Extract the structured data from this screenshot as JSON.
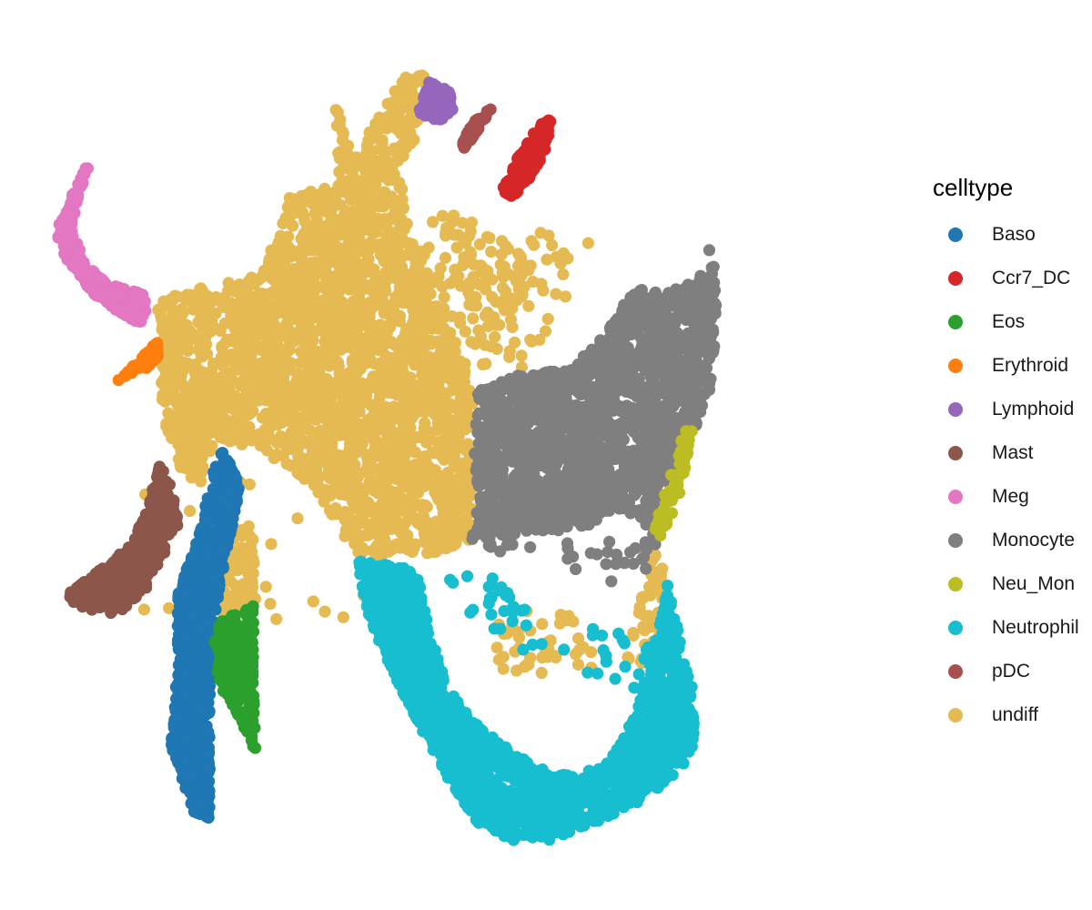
{
  "chart_data": {
    "type": "scatter",
    "title": "",
    "xlabel": "",
    "ylabel": "",
    "axes_visible": false,
    "grid": false,
    "legend_title": "celltype",
    "legend_position": "right",
    "xlim": [
      0,
      100
    ],
    "ylim": [
      0,
      100
    ],
    "series": [
      {
        "name": "Baso",
        "color": "#1F77B4",
        "regions": [
          {
            "shape": "poly",
            "pts": [
              [
                22.3,
                51.6
              ],
              [
                24.9,
                46.6
              ],
              [
                23.2,
                37.9
              ],
              [
                21.6,
                28.9
              ],
              [
                21.4,
                22.9
              ],
              [
                21.3,
                7.2
              ],
              [
                19.7,
                7.7
              ],
              [
                16.8,
                15.7
              ],
              [
                17.5,
                24.4
              ],
              [
                17.6,
                34.0
              ],
              [
                19.7,
                39.4
              ],
              [
                21.4,
                46.4
              ]
            ],
            "n": 1100
          }
        ]
      },
      {
        "name": "Ccr7_DC",
        "color": "#D62728",
        "regions": [
          {
            "shape": "poly",
            "pts": [
              [
                59.8,
                88.5
              ],
              [
                61.2,
                89.5
              ],
              [
                60.8,
                86.0
              ],
              [
                59.0,
                82.8
              ],
              [
                56.9,
                80.2
              ],
              [
                55.3,
                80.5
              ],
              [
                57.2,
                84.5
              ]
            ],
            "n": 160
          }
        ]
      },
      {
        "name": "Eos",
        "color": "#2CA02C",
        "regions": [
          {
            "shape": "poly",
            "pts": [
              [
                22.7,
                30.8
              ],
              [
                26.5,
                32.5
              ],
              [
                26.5,
                22.3
              ],
              [
                26.7,
                15.3
              ],
              [
                24.2,
                20.5
              ],
              [
                22.2,
                23.5
              ],
              [
                21.8,
                28.0
              ]
            ],
            "n": 260
          }
        ]
      },
      {
        "name": "Erythroid",
        "color": "#FF7F0E",
        "regions": [
          {
            "shape": "poly",
            "pts": [
              [
                10.4,
                58.5
              ],
              [
                15.2,
                63.2
              ],
              [
                15.3,
                61.5
              ],
              [
                14.0,
                60.2
              ],
              [
                12.0,
                59.5
              ]
            ],
            "n": 110
          }
        ]
      },
      {
        "name": "Lymphoid",
        "color": "#9467BD",
        "regions": [
          {
            "shape": "poly",
            "pts": [
              [
                45.7,
                90.0
              ],
              [
                47.0,
                93.8
              ],
              [
                49.3,
                92.6
              ],
              [
                49.9,
                90.5
              ],
              [
                48.2,
                89.0
              ]
            ],
            "n": 120
          }
        ]
      },
      {
        "name": "Mast",
        "color": "#8C564B",
        "regions": [
          {
            "shape": "poly",
            "pts": [
              [
                4.3,
                33.2
              ],
              [
                6.2,
                32.3
              ],
              [
                8.5,
                31.6
              ],
              [
                10.6,
                31.5
              ],
              [
                14.0,
                34.5
              ],
              [
                16.5,
                39.2
              ],
              [
                17.9,
                41.8
              ],
              [
                17.0,
                46.2
              ],
              [
                15.5,
                48.8
              ],
              [
                13.9,
                43.5
              ],
              [
                12.2,
                39.5
              ],
              [
                8.2,
                36.4
              ],
              [
                5.0,
                34.3
              ]
            ],
            "n": 380
          }
        ]
      },
      {
        "name": "Meg",
        "color": "#E377C2",
        "regions": [
          {
            "shape": "poly",
            "pts": [
              [
                3.4,
                76.3
              ],
              [
                4.8,
                79.4
              ],
              [
                6.2,
                82.5
              ],
              [
                7.4,
                85.0
              ],
              [
                7.1,
                83.4
              ],
              [
                6.0,
                80.4
              ],
              [
                5.2,
                76.5
              ],
              [
                6.8,
                72.3
              ],
              [
                9.4,
                70.0
              ],
              [
                13.6,
                68.8
              ],
              [
                14.3,
                66.6
              ],
              [
                13.1,
                65.3
              ],
              [
                10.2,
                67.0
              ],
              [
                7.2,
                69.3
              ],
              [
                4.8,
                72.5
              ],
              [
                3.9,
                74.2
              ]
            ],
            "n": 300
          }
        ]
      },
      {
        "name": "Monocyte",
        "color": "#7F7F7F",
        "regions": [
          {
            "shape": "poly",
            "pts": [
              [
                52.6,
                57.4
              ],
              [
                57.8,
                59.5
              ],
              [
                63.5,
                60.0
              ],
              [
                67.5,
                64.0
              ],
              [
                71.0,
                69.5
              ],
              [
                74.5,
                69.0
              ],
              [
                78.0,
                70.2
              ],
              [
                80.0,
                72.5
              ],
              [
                78.9,
                77.8
              ],
              [
                80.3,
                72.0
              ],
              [
                80.7,
                65.5
              ],
              [
                79.5,
                55.5
              ],
              [
                77.5,
                52.0
              ],
              [
                75.0,
                45.0
              ],
              [
                73.5,
                40.0
              ],
              [
                71.5,
                43.0
              ],
              [
                69.0,
                43.5
              ],
              [
                65.0,
                41.5
              ],
              [
                60.5,
                41.0
              ],
              [
                52.6,
                40.0
              ],
              [
                52.2,
                48.0
              ]
            ],
            "n": 1800
          },
          {
            "shape": "poly",
            "pts": [
              [
                50.2,
                41.0
              ],
              [
                54.5,
                41.3
              ],
              [
                59.0,
                39.5
              ],
              [
                66.5,
                35.0
              ],
              [
                72.0,
                35.5
              ],
              [
                74.0,
                40.5
              ],
              [
                68.0,
                41.5
              ],
              [
                60.5,
                39.5
              ],
              [
                55.0,
                38.5
              ]
            ],
            "n": 35
          }
        ]
      },
      {
        "name": "Neu_Mon",
        "color": "#BCBD22",
        "regions": [
          {
            "shape": "poly",
            "pts": [
              [
                73.2,
                41.5
              ],
              [
                75.3,
                47.8
              ],
              [
                76.7,
                52.6
              ],
              [
                77.8,
                53.6
              ],
              [
                77.2,
                49.0
              ],
              [
                75.5,
                43.0
              ],
              [
                74.0,
                40.5
              ]
            ],
            "n": 55
          }
        ]
      },
      {
        "name": "Neutrophil",
        "color": "#17BECF",
        "regions": [
          {
            "shape": "poly",
            "pts": [
              [
                38.3,
                37.8
              ],
              [
                40.0,
                31.0
              ],
              [
                42.5,
                25.0
              ],
              [
                45.5,
                19.0
              ],
              [
                49.0,
                12.5
              ],
              [
                52.5,
                7.0
              ],
              [
                57.0,
                4.8
              ],
              [
                61.5,
                5.0
              ],
              [
                67.5,
                7.5
              ],
              [
                72.5,
                10.0
              ],
              [
                76.5,
                13.5
              ],
              [
                78.0,
                16.5
              ],
              [
                77.7,
                23.5
              ],
              [
                76.5,
                28.0
              ],
              [
                74.8,
                35.0
              ],
              [
                73.8,
                30.0
              ],
              [
                72.5,
                24.5
              ],
              [
                70.5,
                18.5
              ],
              [
                67.5,
                13.5
              ],
              [
                62.0,
                12.5
              ],
              [
                57.0,
                15.0
              ],
              [
                52.5,
                18.5
              ],
              [
                49.0,
                23.0
              ],
              [
                47.0,
                29.5
              ],
              [
                45.5,
                36.5
              ]
            ],
            "n": 1900
          },
          {
            "shape": "poly",
            "pts": [
              [
                48.0,
                37.0
              ],
              [
                56.0,
                36.0
              ],
              [
                64.0,
                25.0
              ],
              [
                71.0,
                22.0
              ],
              [
                74.0,
                30.0
              ],
              [
                66.0,
                30.0
              ],
              [
                58.0,
                27.0
              ],
              [
                50.0,
                32.0
              ]
            ],
            "n": 50
          }
        ]
      },
      {
        "name": "pDC",
        "color": "#A7504F",
        "regions": [
          {
            "shape": "poly",
            "pts": [
              [
                50.8,
                85.5
              ],
              [
                52.0,
                87.0
              ],
              [
                53.2,
                88.8
              ],
              [
                54.3,
                90.5
              ],
              [
                53.5,
                90.2
              ],
              [
                52.0,
                88.8
              ],
              [
                51.0,
                86.8
              ]
            ],
            "n": 70
          }
        ]
      },
      {
        "name": "undiff",
        "color": "#E6BA53",
        "regions": [
          {
            "shape": "poly",
            "pts": [
              [
                15.6,
                62.0
              ],
              [
                15.0,
                68.0
              ],
              [
                20.0,
                69.5
              ],
              [
                27.5,
                71.0
              ],
              [
                30.5,
                80.0
              ],
              [
                36.5,
                82.0
              ],
              [
                36.0,
                91.5
              ],
              [
                38.0,
                84.5
              ],
              [
                44.5,
                95.0
              ],
              [
                46.8,
                94.5
              ],
              [
                45.5,
                87.5
              ],
              [
                43.5,
                83.0
              ],
              [
                45.5,
                73.0
              ],
              [
                52.2,
                57.5
              ],
              [
                52.5,
                52.5
              ],
              [
                52.2,
                45.5
              ],
              [
                52.0,
                39.5
              ],
              [
                46.0,
                38.3
              ],
              [
                38.5,
                38.0
              ],
              [
                33.5,
                46.5
              ],
              [
                27.0,
                50.5
              ],
              [
                22.0,
                52.0
              ],
              [
                19.5,
                46.0
              ],
              [
                16.8,
                50.0
              ],
              [
                15.6,
                57.0
              ]
            ],
            "n": 2600
          },
          {
            "shape": "poly",
            "pts": [
              [
                23.0,
                41.0
              ],
              [
                27.0,
                42.0
              ],
              [
                26.3,
                31.7
              ],
              [
                22.8,
                30.9
              ],
              [
                21.5,
                37.0
              ]
            ],
            "n": 90
          },
          {
            "shape": "poly",
            "pts": [
              [
                44.0,
                70.0
              ],
              [
                48.0,
                79.0
              ],
              [
                55.0,
                76.0
              ],
              [
                59.0,
                72.0
              ],
              [
                57.0,
                65.0
              ],
              [
                52.0,
                58.0
              ],
              [
                46.0,
                60.0
              ]
            ],
            "n": 150
          },
          {
            "shape": "poly",
            "pts": [
              [
                70.0,
                26.0
              ],
              [
                73.0,
                38.5
              ],
              [
                74.6,
                38.5
              ],
              [
                74.2,
                26.0
              ],
              [
                72.0,
                25.5
              ]
            ],
            "n": 55
          },
          {
            "shape": "poly",
            "pts": [
              [
                53.0,
                29.0
              ],
              [
                58.0,
                32.0
              ],
              [
                65.0,
                31.0
              ],
              [
                69.0,
                26.0
              ],
              [
                62.0,
                24.0
              ],
              [
                55.0,
                25.0
              ]
            ],
            "n": 45
          },
          {
            "shape": "rect",
            "x": [
              12.0,
              40.0
            ],
            "y": [
              30.0,
              48.0
            ],
            "n": 35
          },
          {
            "shape": "poly",
            "pts": [
              [
                52.0,
                63.0
              ],
              [
                58.0,
                60.0
              ],
              [
                63.0,
                67.0
              ],
              [
                67.0,
                75.0
              ],
              [
                62.0,
                78.0
              ],
              [
                55.0,
                72.0
              ]
            ],
            "n": 45
          }
        ]
      }
    ]
  }
}
